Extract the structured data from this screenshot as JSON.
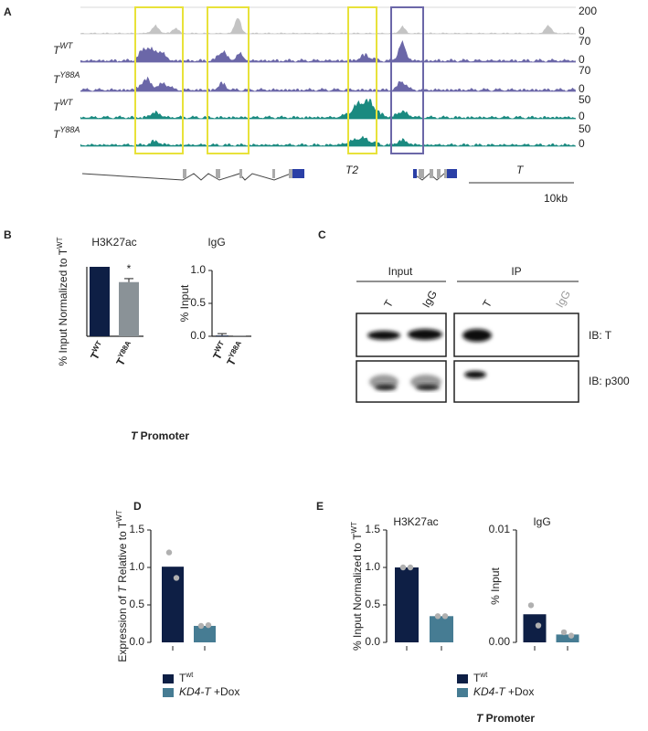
{
  "panel_labels": [
    "A",
    "B",
    "C",
    "D",
    "E"
  ],
  "tracks": [
    {
      "color": "#c4c4c4",
      "scale": [
        "200",
        "0"
      ]
    },
    {
      "label": "T",
      "sup": "WT",
      "color": "#6b67a8",
      "scale": [
        "70",
        "0"
      ]
    },
    {
      "label": "T",
      "sup": "Y88A",
      "color": "#6b67a8",
      "scale": [
        "70",
        "0"
      ]
    },
    {
      "label": "T",
      "sup": "WT",
      "color": "#1a8a80",
      "scale": [
        "50",
        "0"
      ]
    },
    {
      "label": "T",
      "sup": "Y88A",
      "color": "#1a8a80",
      "scale": [
        "50",
        "0"
      ]
    }
  ],
  "genes": [
    "T2",
    "T"
  ],
  "scale_bar": "10kb",
  "blot": {
    "groups": [
      "Input",
      "IP"
    ],
    "lanes": [
      "T",
      "IgG",
      "T",
      "IgG"
    ],
    "probes": [
      "IB: T",
      "IB: p300"
    ]
  },
  "promoter_captions": [
    {
      "gene": "T",
      "text": " Promoter"
    },
    {
      "gene": "T",
      "text": " Promoter"
    }
  ],
  "chart_data": [
    {
      "type": "bar",
      "title": "H3K27ac",
      "ylabel": [
        {
          "text": "% Input Normalized to T",
          "style": "normal"
        },
        {
          "text": "WT",
          "style": "sup"
        }
      ],
      "categories": [
        "T",
        "T"
      ],
      "category_sups": [
        "WT",
        "Y88A"
      ],
      "values": [
        1.0,
        0.78
      ],
      "errors": [
        null,
        0.05
      ],
      "colors": [
        "#0e1f45",
        "#8a9297"
      ],
      "annotations": [
        {
          "text": "*",
          "index": 1
        }
      ],
      "ylim": [
        0,
        1
      ]
    },
    {
      "type": "bar",
      "title": "IgG",
      "ylabel": [
        {
          "text": "% Input",
          "style": "normal"
        }
      ],
      "categories": [
        "T",
        "T"
      ],
      "category_sups": [
        "WT",
        "Y88A"
      ],
      "values": [
        0.01,
        0.005
      ],
      "errors": [
        0.03,
        null
      ],
      "colors": [
        "#0e1f45",
        "#8a9297"
      ],
      "ylim": [
        0,
        1
      ],
      "yticks": [
        {
          "value": 0,
          "label": "0.0"
        },
        {
          "value": 0.5,
          "label": "0.5"
        },
        {
          "value": 1,
          "label": "1.0"
        }
      ]
    },
    {
      "type": "bar",
      "ylabel": [
        {
          "text": "Expression of ",
          "style": "normal"
        },
        {
          "text": "T",
          "style": "italic"
        },
        {
          "text": " Relative to T",
          "style": "normal"
        },
        {
          "text": "WT",
          "style": "sup"
        }
      ],
      "values": [
        1.01,
        0.22
      ],
      "points": [
        [
          1.2,
          0.86
        ],
        [
          0.22,
          0.23
        ]
      ],
      "colors": [
        "#0e1f45",
        "#467c93"
      ],
      "legend": [
        [
          {
            "text": "T",
            "style": "normal"
          },
          {
            "text": "wt",
            "style": "sup"
          }
        ],
        [
          {
            "text": "KD4-T",
            "style": "italic"
          },
          {
            "text": " +Dox",
            "style": "normal"
          }
        ]
      ],
      "ylim": [
        0,
        1.5
      ],
      "yticks": [
        {
          "value": 0,
          "label": "0.0"
        },
        {
          "value": 0.5,
          "label": "0.5"
        },
        {
          "value": 1,
          "label": "1.0"
        },
        {
          "value": 1.5,
          "label": "1.5"
        }
      ]
    },
    {
      "type": "bar",
      "title": "H3K27ac",
      "ylabel": [
        {
          "text": "% Input Normalized to T",
          "style": "normal"
        },
        {
          "text": "WT",
          "style": "sup"
        }
      ],
      "values": [
        1.0,
        0.35
      ],
      "points": [
        [
          1.0,
          1.0
        ],
        [
          0.35,
          0.35
        ]
      ],
      "colors": [
        "#0e1f45",
        "#467c93"
      ],
      "legend": [
        [
          {
            "text": "T",
            "style": "normal"
          },
          {
            "text": "wt",
            "style": "sup"
          }
        ],
        [
          {
            "text": "KD4-T",
            "style": "italic"
          },
          {
            "text": " +Dox",
            "style": "normal"
          }
        ]
      ],
      "ylim": [
        0,
        1.5
      ],
      "yticks": [
        {
          "value": 0,
          "label": "0.0"
        },
        {
          "value": 0.5,
          "label": "0.5"
        },
        {
          "value": 1,
          "label": "1.0"
        },
        {
          "value": 1.5,
          "label": "1.5"
        }
      ]
    },
    {
      "type": "bar",
      "title": "IgG",
      "ylabel": [
        {
          "text": "% Input",
          "style": "normal"
        }
      ],
      "values": [
        0.0025,
        0.0007
      ],
      "points": [
        [
          0.0033,
          0.0015
        ],
        [
          0.0009,
          0.0006
        ]
      ],
      "colors": [
        "#0e1f45",
        "#467c93"
      ],
      "ylim": [
        0,
        0.01
      ],
      "yticks": [
        {
          "value": 0,
          "label": "0.00"
        },
        {
          "value": 0.01,
          "label": "0.01"
        }
      ]
    }
  ]
}
